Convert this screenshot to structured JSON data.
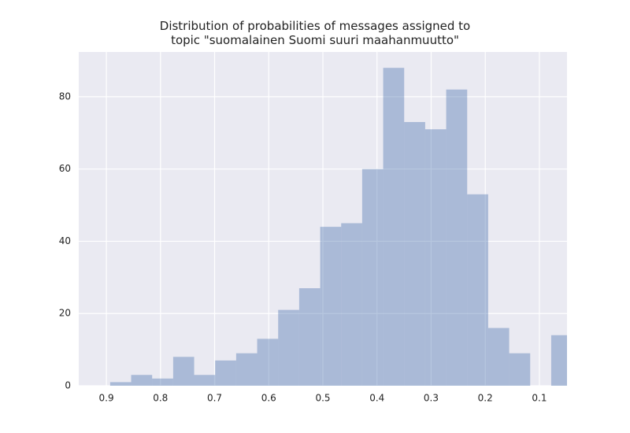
{
  "chart_data": {
    "type": "histogram",
    "title": "Distribution of probabilities of messages assigned to\ntopic \"suomalainen Suomi suuri maahanmuutto\"",
    "bins": [
      0.893,
      0.8542,
      0.8154,
      0.7766,
      0.7378,
      0.699,
      0.6602,
      0.6214,
      0.5826,
      0.5438,
      0.505,
      0.4662,
      0.4274,
      0.3886,
      0.3498,
      0.311,
      0.2722,
      0.2334,
      0.1946,
      0.1558,
      0.117,
      0.0782,
      0.0394
    ],
    "values": [
      1,
      3,
      2,
      8,
      3,
      7,
      9,
      13,
      21,
      27,
      44,
      45,
      60,
      88,
      73,
      71,
      82,
      53,
      16,
      9,
      0,
      14
    ],
    "color": "#4c72b0",
    "xlim": [
      0.951,
      0.049
    ],
    "xticks": [
      0.9,
      0.8,
      0.7,
      0.6,
      0.5,
      0.4,
      0.3,
      0.2,
      0.1
    ],
    "ylim": [
      0,
      92.4
    ],
    "yticks": [
      0,
      20,
      40,
      60,
      80
    ],
    "grid": true
  }
}
